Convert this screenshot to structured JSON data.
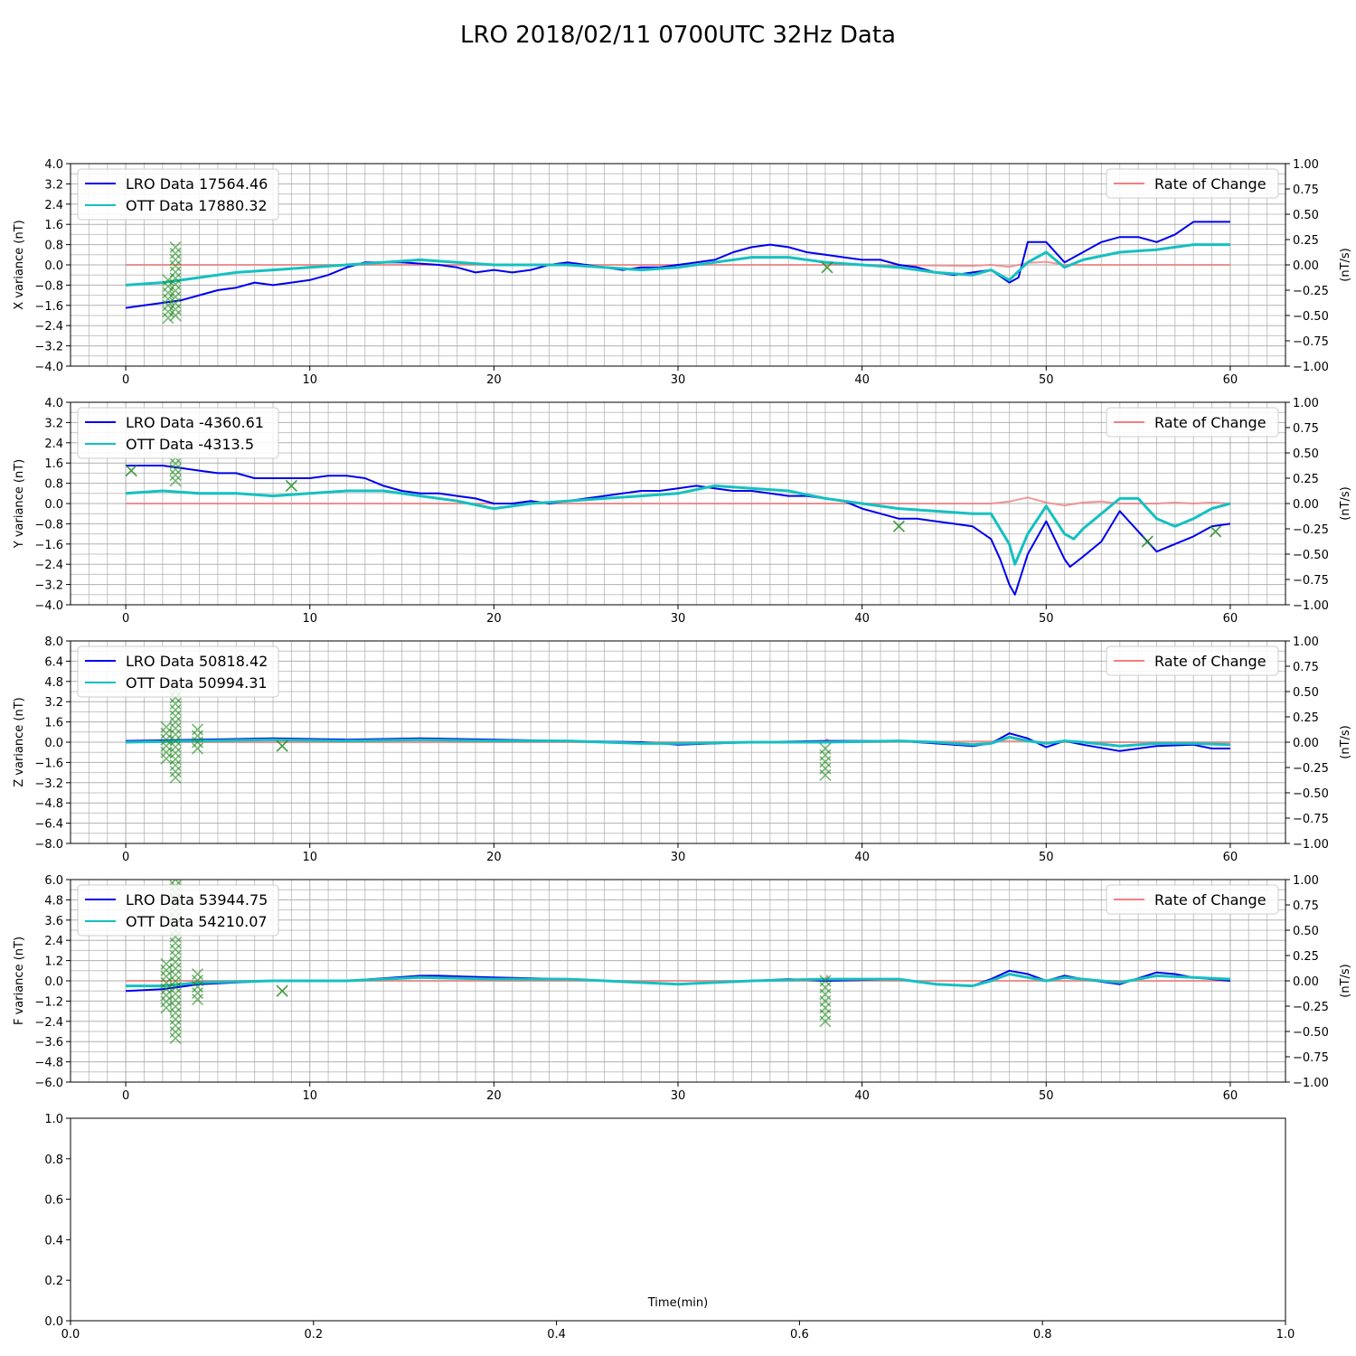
{
  "figure_title": "LRO 2018/02/11 0700UTC 32Hz Data",
  "colors": {
    "lro": "#0000ee",
    "ott": "#16c0c0",
    "rate": "#f08080",
    "spike": "#228b22",
    "grid": "#b0b0b0"
  },
  "chart_data": [
    {
      "type": "line",
      "ylabel": "X variance (nT)",
      "ylabel_right": "(nT/s)",
      "xlim": [
        -3,
        63
      ],
      "ylim": [
        -4.0,
        4.0
      ],
      "ylim_right": [
        -1.0,
        1.0
      ],
      "x_ticks": [
        "0",
        "10",
        "20",
        "30",
        "40",
        "50",
        "60"
      ],
      "y_ticks": [
        "−4.0",
        "−3.2",
        "−2.4",
        "−1.6",
        "−0.8",
        "0.0",
        "0.8",
        "1.6",
        "2.4",
        "3.2",
        "4.0"
      ],
      "y_ticks_right": [
        "−1.00",
        "−0.75",
        "−0.50",
        "−0.25",
        "0.00",
        "0.25",
        "0.50",
        "0.75",
        "1.00"
      ],
      "grid": true,
      "legend_left": "upper-left",
      "legend_right": "upper-right",
      "series": [
        {
          "name": "LRO Data 17564.46",
          "axis": "left",
          "role": "lro",
          "x": [
            0,
            1,
            2,
            3,
            4,
            5,
            6,
            7,
            8,
            9,
            10,
            11,
            12,
            13,
            14,
            15,
            16,
            17,
            18,
            19,
            20,
            21,
            22,
            23,
            24,
            25,
            26,
            27,
            28,
            29,
            30,
            31,
            32,
            33,
            34,
            35,
            36,
            37,
            38,
            39,
            40,
            41,
            42,
            43,
            44,
            45,
            46,
            47,
            48,
            48.5,
            49,
            50,
            51,
            52,
            53,
            54,
            55,
            56,
            57,
            58,
            59,
            60
          ],
          "values": [
            -1.7,
            -1.6,
            -1.5,
            -1.4,
            -1.2,
            -1.0,
            -0.9,
            -0.7,
            -0.8,
            -0.7,
            -0.6,
            -0.4,
            -0.1,
            0.1,
            0.1,
            0.1,
            0.05,
            0.0,
            -0.1,
            -0.3,
            -0.2,
            -0.3,
            -0.2,
            0.0,
            0.1,
            0.0,
            -0.1,
            -0.2,
            -0.1,
            -0.1,
            0.0,
            0.1,
            0.2,
            0.5,
            0.7,
            0.8,
            0.7,
            0.5,
            0.4,
            0.3,
            0.2,
            0.2,
            0.0,
            -0.1,
            -0.3,
            -0.4,
            -0.3,
            -0.2,
            -0.7,
            -0.5,
            0.9,
            0.9,
            0.1,
            0.5,
            0.9,
            1.1,
            1.1,
            0.9,
            1.2,
            1.7,
            1.7,
            1.7
          ]
        },
        {
          "name": "OTT Data 17880.32",
          "axis": "left",
          "role": "ott",
          "x": [
            0,
            2,
            4,
            6,
            8,
            10,
            12,
            14,
            16,
            18,
            20,
            22,
            24,
            26,
            28,
            30,
            32,
            34,
            36,
            38,
            40,
            42,
            44,
            46,
            47,
            48,
            49,
            50,
            51,
            52,
            54,
            56,
            58,
            60
          ],
          "values": [
            -0.8,
            -0.7,
            -0.5,
            -0.3,
            -0.2,
            -0.1,
            0.0,
            0.1,
            0.2,
            0.1,
            0.0,
            0.0,
            0.0,
            -0.1,
            -0.2,
            -0.1,
            0.1,
            0.3,
            0.3,
            0.1,
            0.0,
            -0.1,
            -0.3,
            -0.4,
            -0.2,
            -0.6,
            0.1,
            0.5,
            -0.1,
            0.2,
            0.5,
            0.6,
            0.8,
            0.8
          ]
        },
        {
          "name": "Rate of Change",
          "axis": "right",
          "role": "rate",
          "x": [
            0,
            10,
            20,
            30,
            40,
            46,
            47,
            48,
            49,
            50,
            51,
            52,
            60
          ],
          "values": [
            0,
            0,
            0,
            0,
            0,
            -0.01,
            0.0,
            -0.02,
            0.02,
            0.03,
            0.0,
            0.0,
            0
          ]
        }
      ],
      "spikes": [
        {
          "x": 2.7,
          "y_from": -2.0,
          "y_to": 0.7
        },
        {
          "x": 2.3,
          "y_from": -2.1,
          "y_to": -0.6
        },
        {
          "x": 38.1,
          "y_from": -0.1,
          "y_to": -0.1
        }
      ]
    },
    {
      "type": "line",
      "ylabel": "Y variance (nT)",
      "ylabel_right": "(nT/s)",
      "xlim": [
        -3,
        63
      ],
      "ylim": [
        -4.0,
        4.0
      ],
      "ylim_right": [
        -1.0,
        1.0
      ],
      "x_ticks": [
        "0",
        "10",
        "20",
        "30",
        "40",
        "50",
        "60"
      ],
      "y_ticks": [
        "−4.0",
        "−3.2",
        "−2.4",
        "−1.6",
        "−0.8",
        "0.0",
        "0.8",
        "1.6",
        "2.4",
        "3.2",
        "4.0"
      ],
      "y_ticks_right": [
        "−1.00",
        "−0.75",
        "−0.50",
        "−0.25",
        "0.00",
        "0.25",
        "0.50",
        "0.75",
        "1.00"
      ],
      "grid": true,
      "legend_left": "upper-left",
      "legend_right": "upper-right",
      "series": [
        {
          "name": "LRO Data -4360.61",
          "axis": "left",
          "role": "lro",
          "x": [
            0,
            1,
            2,
            3,
            4,
            5,
            6,
            7,
            8,
            9,
            10,
            11,
            12,
            13,
            14,
            15,
            16,
            17,
            18,
            19,
            20,
            21,
            22,
            23,
            24,
            25,
            26,
            27,
            28,
            29,
            30,
            31,
            32,
            33,
            34,
            35,
            36,
            37,
            38,
            39,
            40,
            41,
            42,
            43,
            44,
            45,
            46,
            47,
            47.5,
            48,
            48.3,
            49,
            50,
            51,
            51.3,
            52,
            53,
            54,
            55,
            56,
            57,
            58,
            59,
            60
          ],
          "values": [
            1.5,
            1.5,
            1.5,
            1.4,
            1.3,
            1.2,
            1.2,
            1.0,
            1.0,
            1.0,
            1.0,
            1.1,
            1.1,
            1.0,
            0.7,
            0.5,
            0.4,
            0.4,
            0.3,
            0.2,
            0.0,
            0.0,
            0.1,
            0.0,
            0.1,
            0.2,
            0.3,
            0.4,
            0.5,
            0.5,
            0.6,
            0.7,
            0.6,
            0.5,
            0.5,
            0.4,
            0.3,
            0.3,
            0.2,
            0.1,
            -0.2,
            -0.4,
            -0.6,
            -0.6,
            -0.7,
            -0.8,
            -0.9,
            -1.4,
            -2.2,
            -3.2,
            -3.6,
            -2.0,
            -0.7,
            -2.2,
            -2.5,
            -2.1,
            -1.5,
            -0.3,
            -1.1,
            -1.9,
            -1.6,
            -1.3,
            -0.9,
            -0.8
          ]
        },
        {
          "name": "OTT Data -4313.5",
          "axis": "left",
          "role": "ott",
          "x": [
            0,
            2,
            4,
            6,
            8,
            10,
            12,
            14,
            16,
            18,
            20,
            22,
            24,
            26,
            28,
            30,
            32,
            34,
            36,
            38,
            40,
            42,
            44,
            46,
            47,
            48,
            48.3,
            49,
            50,
            51,
            51.5,
            52,
            53,
            54,
            55,
            56,
            57,
            58,
            59,
            60
          ],
          "values": [
            0.4,
            0.5,
            0.4,
            0.4,
            0.3,
            0.4,
            0.5,
            0.5,
            0.3,
            0.1,
            -0.2,
            0.0,
            0.1,
            0.2,
            0.3,
            0.4,
            0.7,
            0.6,
            0.5,
            0.2,
            0.0,
            -0.2,
            -0.3,
            -0.4,
            -0.4,
            -1.6,
            -2.4,
            -1.2,
            -0.1,
            -1.2,
            -1.4,
            -1.0,
            -0.4,
            0.2,
            0.2,
            -0.6,
            -0.9,
            -0.6,
            -0.2,
            0.0
          ]
        },
        {
          "name": "Rate of Change",
          "axis": "right",
          "role": "rate",
          "x": [
            0,
            20,
            40,
            46,
            47,
            48,
            49,
            50,
            51,
            52,
            53,
            54,
            55,
            56,
            57,
            58,
            59,
            60
          ],
          "values": [
            0,
            0,
            0,
            0,
            0.0,
            0.02,
            0.06,
            0.01,
            -0.02,
            0.01,
            0.02,
            0.0,
            0.0,
            0.0,
            0.01,
            0.0,
            0.01,
            0
          ]
        }
      ],
      "spikes": [
        {
          "x": 2.7,
          "y_from": 0.9,
          "y_to": 1.8
        },
        {
          "x": 0.3,
          "y_from": 1.3,
          "y_to": 1.3
        },
        {
          "x": 9.0,
          "y_from": 0.7,
          "y_to": 0.7
        },
        {
          "x": 42.0,
          "y_from": -0.9,
          "y_to": -0.9
        },
        {
          "x": 55.5,
          "y_from": -1.5,
          "y_to": -1.5
        },
        {
          "x": 59.2,
          "y_from": -1.1,
          "y_to": -1.1
        }
      ]
    },
    {
      "type": "line",
      "ylabel": "Z variance (nT)",
      "ylabel_right": "(nT/s)",
      "xlim": [
        -3,
        63
      ],
      "ylim": [
        -8.0,
        8.0
      ],
      "ylim_right": [
        -1.0,
        1.0
      ],
      "x_ticks": [
        "0",
        "10",
        "20",
        "30",
        "40",
        "50",
        "60"
      ],
      "y_ticks": [
        "−8.0",
        "−6.4",
        "−4.8",
        "−3.2",
        "−1.6",
        "0.0",
        "1.6",
        "3.2",
        "4.8",
        "6.4",
        "8.0"
      ],
      "y_ticks_right": [
        "−1.00",
        "−0.75",
        "−0.50",
        "−0.25",
        "0.00",
        "0.25",
        "0.50",
        "0.75",
        "1.00"
      ],
      "grid": true,
      "legend_left": "upper-left",
      "legend_right": "upper-right",
      "series": [
        {
          "name": "LRO Data 50818.42",
          "axis": "left",
          "role": "lro",
          "x": [
            0,
            4,
            8,
            12,
            16,
            20,
            24,
            28,
            30,
            34,
            38,
            42,
            44,
            46,
            47,
            48,
            49,
            50,
            51,
            52,
            54,
            56,
            58,
            59,
            60
          ],
          "values": [
            0.1,
            0.2,
            0.3,
            0.2,
            0.3,
            0.2,
            0.1,
            0.0,
            -0.2,
            0.0,
            0.1,
            0.1,
            -0.1,
            -0.3,
            -0.1,
            0.7,
            0.3,
            -0.4,
            0.1,
            -0.2,
            -0.7,
            -0.3,
            -0.2,
            -0.5,
            -0.5
          ]
        },
        {
          "name": "OTT Data 50994.31",
          "axis": "left",
          "role": "ott",
          "x": [
            0,
            4,
            8,
            12,
            16,
            20,
            24,
            28,
            30,
            34,
            38,
            42,
            44,
            46,
            47,
            48,
            49,
            50,
            51,
            52,
            54,
            56,
            58,
            60
          ],
          "values": [
            0.0,
            0.1,
            0.2,
            0.1,
            0.2,
            0.1,
            0.1,
            -0.1,
            -0.1,
            0.0,
            0.0,
            0.1,
            0.0,
            -0.2,
            -0.1,
            0.4,
            0.1,
            -0.1,
            0.1,
            0.0,
            -0.3,
            -0.1,
            -0.1,
            -0.2
          ]
        },
        {
          "name": "Rate of Change",
          "axis": "right",
          "role": "rate",
          "x": [
            0,
            10,
            20,
            30,
            38,
            38.1,
            38.2,
            40,
            48,
            49,
            50,
            60
          ],
          "values": [
            0,
            0,
            0,
            0,
            0,
            0.03,
            0,
            0,
            0.01,
            0.01,
            0.0,
            0
          ]
        }
      ],
      "spikes": [
        {
          "x": 2.7,
          "y_from": -2.8,
          "y_to": 4.5
        },
        {
          "x": 2.2,
          "y_from": -1.3,
          "y_to": 1.2
        },
        {
          "x": 3.9,
          "y_from": -0.5,
          "y_to": 1.0
        },
        {
          "x": 8.5,
          "y_from": -0.3,
          "y_to": -0.3
        },
        {
          "x": 38.0,
          "y_from": -2.6,
          "y_to": -0.5
        }
      ]
    },
    {
      "type": "line",
      "ylabel": "F variance (nT)",
      "ylabel_right": "(nT/s)",
      "xlim": [
        -3,
        63
      ],
      "ylim": [
        -6.0,
        6.0
      ],
      "ylim_right": [
        -1.0,
        1.0
      ],
      "x_ticks": [
        "0",
        "10",
        "20",
        "30",
        "40",
        "50",
        "60"
      ],
      "y_ticks": [
        "−6.0",
        "−4.8",
        "−3.6",
        "−2.4",
        "−1.2",
        "0.0",
        "1.2",
        "2.4",
        "3.6",
        "4.8",
        "6.0"
      ],
      "y_ticks_right": [
        "−1.00",
        "−0.75",
        "−0.50",
        "−0.25",
        "0.00",
        "0.25",
        "0.50",
        "0.75",
        "1.00"
      ],
      "grid": true,
      "legend_left": "upper-left",
      "legend_right": "upper-right",
      "series": [
        {
          "name": "LRO Data 53944.75",
          "axis": "left",
          "role": "lro",
          "x": [
            0,
            2,
            4,
            8,
            12,
            16,
            17,
            20,
            24,
            28,
            30,
            34,
            36,
            38,
            42,
            44,
            46,
            47,
            48,
            49,
            50,
            51,
            52,
            54,
            56,
            57,
            58,
            60
          ],
          "values": [
            -0.6,
            -0.5,
            -0.2,
            0.0,
            0.0,
            0.3,
            0.3,
            0.2,
            0.1,
            -0.1,
            -0.2,
            0.0,
            0.1,
            0.0,
            0.1,
            -0.2,
            -0.3,
            0.1,
            0.6,
            0.4,
            0.0,
            0.3,
            0.1,
            -0.2,
            0.5,
            0.4,
            0.2,
            0.0
          ]
        },
        {
          "name": "OTT Data 54210.07",
          "axis": "left",
          "role": "ott",
          "x": [
            0,
            2,
            4,
            8,
            12,
            16,
            20,
            24,
            28,
            30,
            34,
            38,
            42,
            44,
            46,
            47,
            48,
            49,
            50,
            51,
            52,
            54,
            56,
            58,
            60
          ],
          "values": [
            -0.3,
            -0.3,
            -0.1,
            0.0,
            0.0,
            0.2,
            0.1,
            0.1,
            -0.1,
            -0.2,
            0.0,
            0.1,
            0.1,
            -0.2,
            -0.3,
            0.0,
            0.4,
            0.2,
            0.0,
            0.2,
            0.1,
            -0.1,
            0.3,
            0.2,
            0.1
          ]
        },
        {
          "name": "Rate of Change",
          "axis": "right",
          "role": "rate",
          "x": [
            0,
            10,
            20,
            30,
            38,
            38.1,
            38.2,
            40,
            48,
            50,
            60
          ],
          "values": [
            0,
            0,
            0,
            0,
            0,
            0.05,
            0,
            0,
            0.0,
            0.0,
            0
          ]
        }
      ],
      "spikes": [
        {
          "x": 2.7,
          "y_from": -3.4,
          "y_to": 6.0
        },
        {
          "x": 2.2,
          "y_from": -1.6,
          "y_to": 1.0
        },
        {
          "x": 3.9,
          "y_from": -1.1,
          "y_to": 0.4
        },
        {
          "x": 8.5,
          "y_from": -0.6,
          "y_to": -0.6
        },
        {
          "x": 38.0,
          "y_from": -2.4,
          "y_to": 0.0
        }
      ]
    },
    {
      "type": "line",
      "xlabel": "Time(min)",
      "xlim": [
        0.0,
        1.0
      ],
      "ylim": [
        0.0,
        1.0
      ],
      "x_ticks": [
        "0.0",
        "0.2",
        "0.4",
        "0.6",
        "0.8",
        "1.0"
      ],
      "y_ticks": [
        "0.0",
        "0.2",
        "0.4",
        "0.6",
        "0.8",
        "1.0"
      ],
      "grid": false,
      "series": []
    }
  ]
}
